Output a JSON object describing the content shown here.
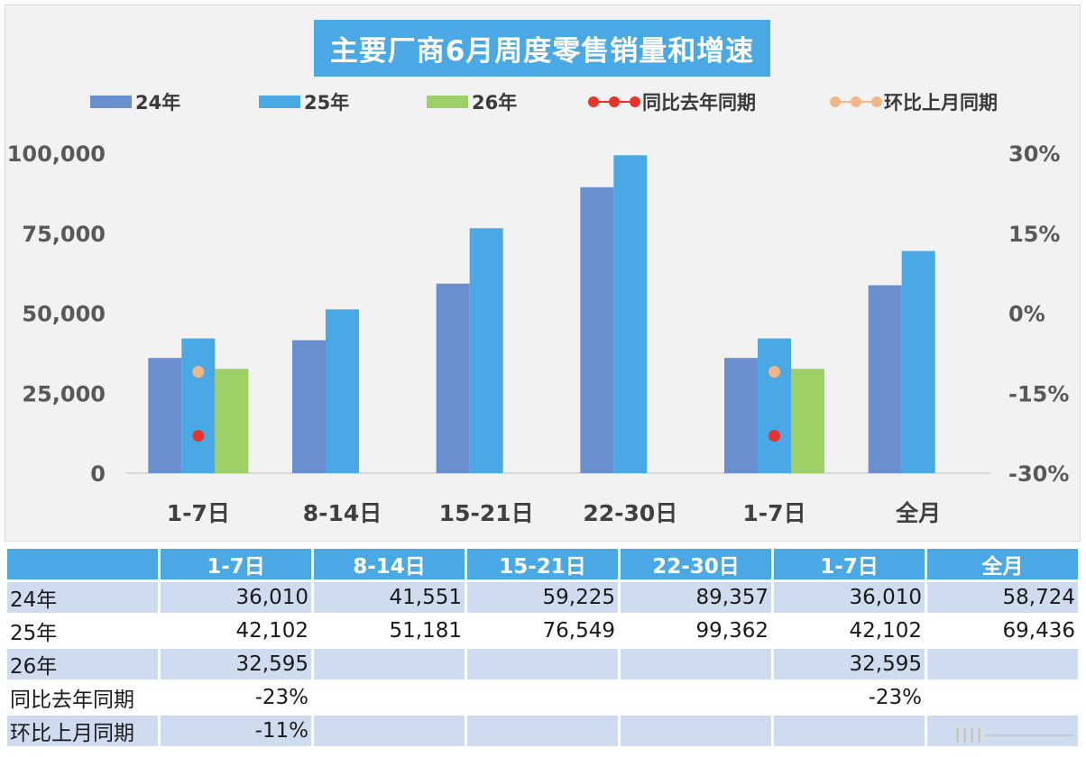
{
  "chart_data": {
    "type": "bar",
    "title": "主要厂商6月周度零售销量和增速",
    "categories": [
      "1-7日",
      "8-14日",
      "15-21日",
      "22-30日",
      "1-7日",
      "全月"
    ],
    "series": [
      {
        "name": "24年",
        "values": [
          36010,
          41551,
          59225,
          89357,
          36010,
          58724
        ],
        "color": "#6a8fcf"
      },
      {
        "name": "25年",
        "values": [
          42102,
          51181,
          76549,
          99362,
          42102,
          69436
        ],
        "color": "#4aa9e4"
      },
      {
        "name": "26年",
        "values": [
          32595,
          null,
          null,
          null,
          32595,
          null
        ],
        "color": "#9fcf67"
      }
    ],
    "line_series": [
      {
        "name": "同比去年同期",
        "values": [
          -23,
          null,
          null,
          null,
          -23,
          null
        ],
        "color": "#e8322a",
        "axis": "right"
      },
      {
        "name": "环比上月同期",
        "values": [
          -11,
          null,
          null,
          null,
          -11,
          null
        ],
        "color": "#f2b788",
        "axis": "right"
      }
    ],
    "ylim": [
      0,
      100000
    ],
    "y_ticks": [
      "0",
      "25,000",
      "50,000",
      "75,000",
      "100,000"
    ],
    "y2lim": [
      -30,
      30
    ],
    "y2_ticks": [
      "-30%",
      "-15%",
      "0%",
      "15%",
      "30%"
    ],
    "legend_position": "top",
    "grid": false
  },
  "table": {
    "columns": [
      "1-7日",
      "8-14日",
      "15-21日",
      "22-30日",
      "1-7日",
      "全月"
    ],
    "rows": [
      {
        "label": "24年",
        "cells": [
          "36,010",
          "41,551",
          "59,225",
          "89,357",
          "36,010",
          "58,724"
        ]
      },
      {
        "label": "25年",
        "cells": [
          "42,102",
          "51,181",
          "76,549",
          "99,362",
          "42,102",
          "69,436"
        ]
      },
      {
        "label": "26年",
        "cells": [
          "32,595",
          "",
          "",
          "",
          "32,595",
          ""
        ]
      },
      {
        "label": "同比去年同期",
        "cells": [
          "-23%",
          "",
          "",
          "",
          "-23%",
          ""
        ]
      },
      {
        "label": "环比上月同期",
        "cells": [
          "-11%",
          "",
          "",
          "",
          "",
          ""
        ]
      }
    ]
  }
}
